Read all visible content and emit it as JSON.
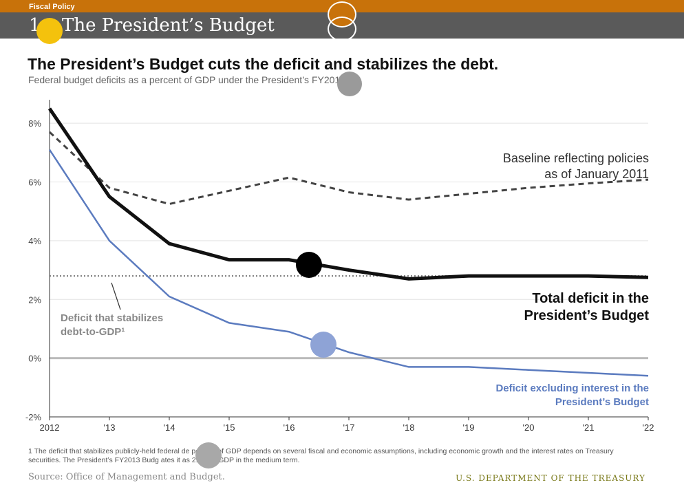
{
  "header": {
    "section": "Fiscal Policy",
    "page_number": "1",
    "title": "The President’s Budget"
  },
  "headline": "The President’s Budget cuts the deficit and stabilizes the debt.",
  "subheadline": "Federal budget deficits as a percent of GDP under the President’s FY2013 B",
  "colors": {
    "accent_orange": "#c8720a",
    "header_gray": "#5a5a5a",
    "total_deficit": "#111111",
    "baseline": "#444444",
    "excluding_interest": "#5b7bbf",
    "stabilizing": "#777777"
  },
  "chart_data": {
    "type": "line",
    "title": "",
    "xlabel": "",
    "ylabel": "",
    "x": [
      2012,
      2013,
      2014,
      2015,
      2016,
      2017,
      2018,
      2019,
      2020,
      2021,
      2022
    ],
    "x_tick_labels": [
      "2012",
      "'13",
      "'14",
      "'15",
      "'16",
      "'17",
      "'18",
      "'19",
      "'20",
      "'21",
      "'22"
    ],
    "ylim": [
      -2,
      8.8
    ],
    "y_ticks": [
      -2,
      0,
      2,
      4,
      6,
      8
    ],
    "y_tick_labels": [
      "-2%",
      "0%",
      "2%",
      "4%",
      "6%",
      "8%"
    ],
    "grid": true,
    "series": [
      {
        "key": "baseline",
        "name": "Baseline reflecting policies as of January 2011",
        "style": "dashed",
        "values": [
          7.7,
          5.8,
          5.25,
          5.7,
          6.15,
          5.65,
          5.4,
          5.6,
          5.8,
          5.95,
          6.08
        ]
      },
      {
        "key": "total",
        "name": "Total deficit in the President’s Budget",
        "style": "solid-thick",
        "values": [
          8.5,
          5.5,
          3.9,
          3.35,
          3.35,
          3.0,
          2.7,
          2.8,
          2.8,
          2.8,
          2.75
        ]
      },
      {
        "key": "excluding_interest",
        "name": "Deficit excluding interest in the President’s Budget",
        "style": "solid-thin",
        "values": [
          7.1,
          4.0,
          2.1,
          1.2,
          0.9,
          0.2,
          -0.3,
          -0.3,
          -0.4,
          -0.5,
          -0.6
        ]
      },
      {
        "key": "stabilizing",
        "name": "Deficit that stabilizes debt-to-GDP¹",
        "style": "dotted",
        "values": [
          2.8,
          2.8,
          2.8,
          2.8,
          2.8,
          2.8,
          2.8,
          2.8,
          2.8,
          2.8,
          2.8
        ]
      }
    ],
    "annotations": {
      "baseline_line1": "Baseline reflecting policies",
      "baseline_line2": "as of January 2011",
      "total_line1": "Total deficit in the",
      "total_line2": "President’s Budget",
      "stabilize_line1": "Deficit that stabilizes",
      "stabilize_line2": "debt-to-GDP¹",
      "excl_line1": "Deficit excluding interest in the",
      "excl_line2": "President’s Budget"
    }
  },
  "footnote": "1 The deficit that stabilizes publicly-held federal de    percent of GDP depends on several fiscal and economic assumptions, including economic growth and the interest rates on Treasury securities. The President’s FY2013 Budg      ates it as 2.8% of GDP in the medium term.",
  "source": "Source: Office of Management and Budget.",
  "agency": "U.S. DEPARTMENT OF THE TREASURY"
}
